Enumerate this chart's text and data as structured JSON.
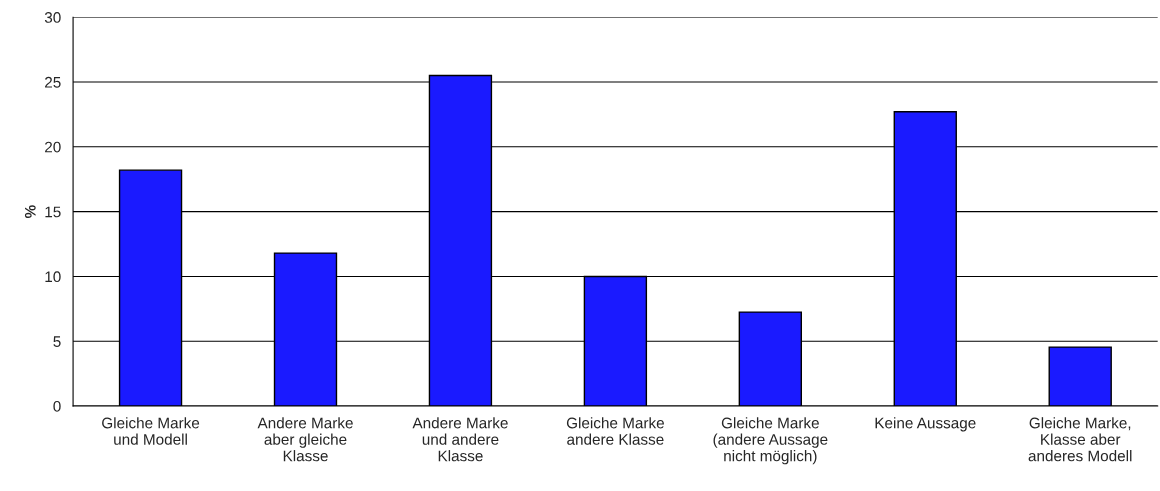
{
  "chart_data": {
    "type": "bar",
    "ylabel": "%",
    "categories": [
      "Gleiche Marke\nund Modell",
      "Andere Marke\naber gleiche\nKlasse",
      "Andere Marke\nund andere\nKlasse",
      "Gleiche Marke\nandere Klasse",
      "Gleiche Marke\n(andere Aussage\nnicht möglich)",
      "Keine Aussage",
      "Gleiche Marke,\nKlasse aber\nanderes Modell"
    ],
    "values": [
      18.2,
      11.8,
      25.5,
      10.0,
      7.25,
      22.7,
      4.55
    ],
    "color": "#1a1aff",
    "ylim": [
      0,
      30
    ],
    "yticks": [
      0,
      5,
      10,
      15,
      20,
      25,
      30
    ],
    "grid": "y",
    "legend": false
  }
}
